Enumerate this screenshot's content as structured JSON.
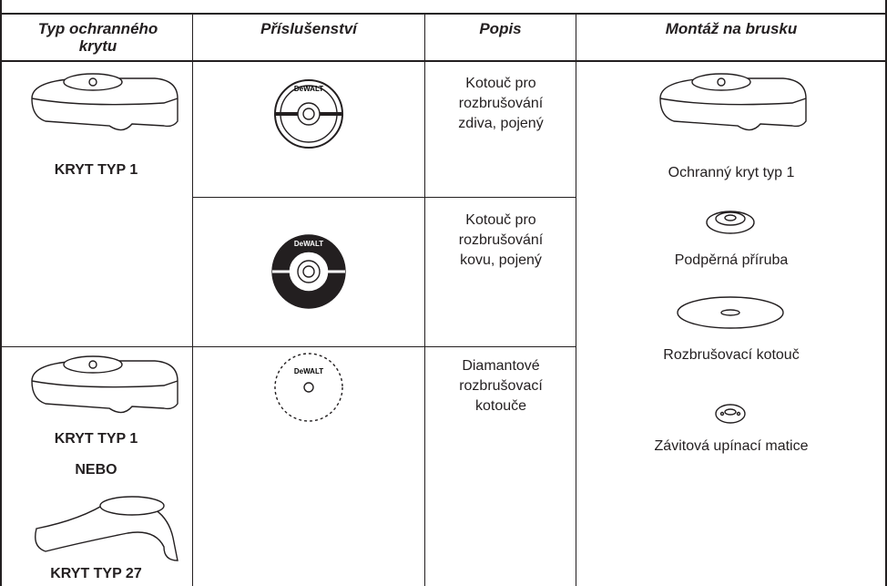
{
  "table": {
    "headers": [
      "Typ ochranného krytu",
      "Příslušenství",
      "Popis",
      "Montáž na brusku"
    ],
    "guards": [
      [
        "KRYT TYP 1"
      ],
      [
        "KRYT TYP 1",
        "NEBO",
        "KRYT TYP 27"
      ]
    ],
    "descriptions": [
      "Kotouč pro rozbrušování zdiva, pojený",
      "Kotouč pro rozbrušování kovu, pojený",
      "Diamantové rozbrušovací kotouče"
    ],
    "mounting": [
      "Ochranný kryt typ 1",
      "Podpěrná příruba",
      "Rozbrušovací kotouč",
      "Závitová upínací matice"
    ],
    "logo": "DeWALT"
  }
}
